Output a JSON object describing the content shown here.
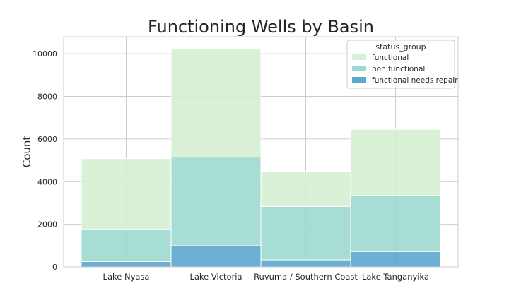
{
  "chart_data": {
    "type": "bar",
    "stacked": true,
    "title": "Functioning Wells by Basin",
    "xlabel": "",
    "ylabel": "Count",
    "categories": [
      "Lake Nyasa",
      "Lake Victoria",
      "Ruvuma / Southern Coast",
      "Lake Tanganyika"
    ],
    "ylim": [
      0,
      10800
    ],
    "yticks": [
      0,
      2000,
      4000,
      6000,
      8000,
      10000
    ],
    "grid": true,
    "legend": {
      "title": "status_group",
      "placement": "top-right"
    },
    "series": [
      {
        "name": "functional needs repair",
        "color": "#5ba7cf",
        "values": [
          250,
          990,
          330,
          720
        ]
      },
      {
        "name": "non functional",
        "color": "#9ed9d1",
        "values": [
          1500,
          4160,
          2510,
          2630
        ]
      },
      {
        "name": "functional",
        "color": "#d6f0d4",
        "values": [
          3330,
          5100,
          1650,
          3100
        ]
      }
    ],
    "legend_order": [
      "functional",
      "non functional",
      "functional needs repair"
    ]
  }
}
